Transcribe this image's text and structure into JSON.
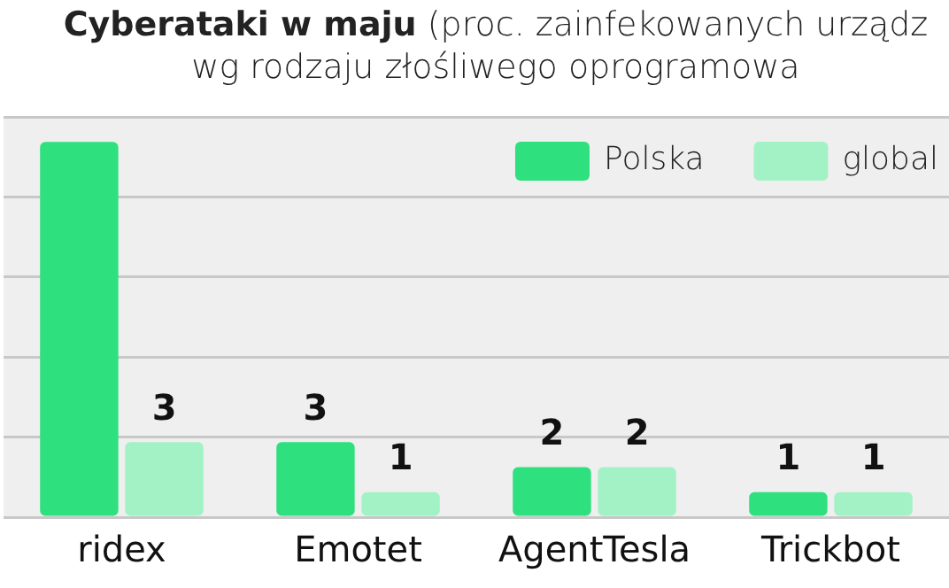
{
  "chart_data": {
    "type": "bar",
    "title": "Cyberataki w maju",
    "subtitle": "(proc. zainfekowanych urządz\nwg rodzaju złośliwego oprogramowa",
    "categories": [
      "ridex",
      "Emotet",
      "AgentTesla",
      "Trickbot"
    ],
    "series": [
      {
        "name": "Polska",
        "color": "#2ee07e",
        "values": [
          15,
          3,
          2,
          1
        ],
        "value_labels": [
          null,
          "3",
          "2",
          "1"
        ]
      },
      {
        "name": "global",
        "color": "#a3f2c6",
        "values": [
          3,
          1,
          2,
          1
        ],
        "value_labels": [
          "3",
          "1",
          "2",
          "1"
        ]
      }
    ],
    "grid": "y",
    "legend": "top right",
    "tick_labels": "x"
  }
}
